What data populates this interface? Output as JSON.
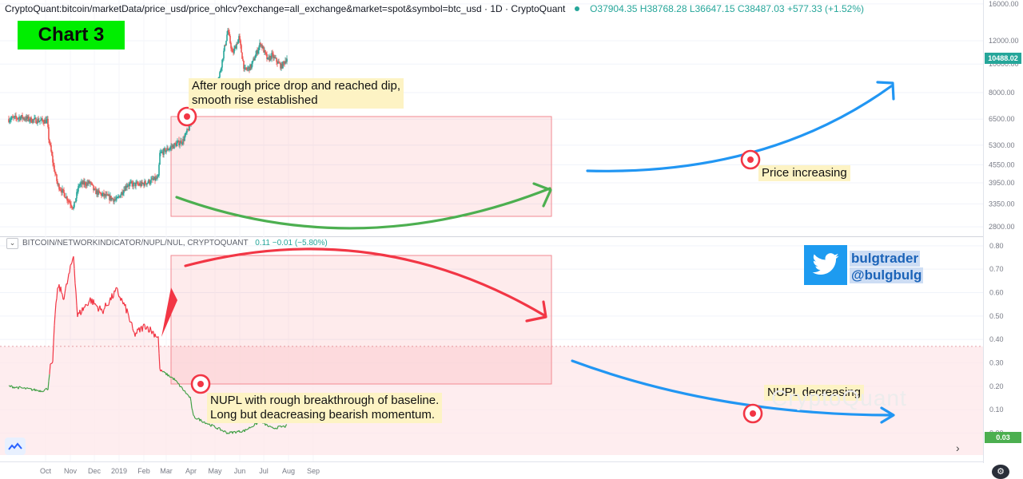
{
  "header": {
    "title": "CryptoQuant:bitcoin/marketData/price_usd/price_ohlcv?exchange=all_exchange&market=spot&symbol=btc_usd · 1D · CryptoQuant",
    "ohlc": "O37904.35  H38768.28  L36647.15  C38487.03  +577.33 (+1.52%)"
  },
  "badge": "Chart 3",
  "indicator": {
    "title": "BITCOIN/NETWORKINDICATOR/NUPL/NUL, CRYPTOQUANT",
    "value": "0.11  −0.01  (−5.80%)",
    "toggle_glyph": "⌄"
  },
  "annotations": {
    "rise": [
      "After rough price drop and reached dip,",
      "smooth rise established"
    ],
    "price_increasing": "Price increasing",
    "nupl_breakthrough": [
      "NUPL with rough breakthrough of baseline.",
      "Long but deacreasing bearish momentum."
    ],
    "nupl_decreasing": "NUPL decreasing"
  },
  "twitter": {
    "handle1": "bulgtrader",
    "handle2": "@bulgbulg"
  },
  "watermark": "CryptoQuant",
  "last_price": "10488.02",
  "last_nupl": "0.03",
  "colors": {
    "up": "#26a69a",
    "down": "#ef5350",
    "nupl_hi": "#f23645",
    "nupl_lo": "#43a047",
    "arrow_blue": "#2196f3",
    "arrow_green": "#4caf50",
    "arrow_red": "#f23645"
  },
  "chart_data": [
    {
      "type": "candlestick",
      "series_label": "BTC price (USD), 1D",
      "y_axis_ticks": [
        "16000.00",
        "12000.00",
        "10000.00",
        "8000.00",
        "6500.00",
        "5300.00",
        "4550.00",
        "3950.00",
        "3350.00",
        "2800.00"
      ],
      "ylim": [
        2600,
        16500
      ],
      "x_axis_ticks": [
        "Oct",
        "Nov",
        "Dec",
        "2019",
        "Feb",
        "Mar",
        "Apr",
        "May",
        "Jun",
        "Jul",
        "Aug",
        "Sep"
      ],
      "close_anchors": [
        [
          "2018-09-25",
          6500
        ],
        [
          "2018-10-10",
          6600
        ],
        [
          "2018-10-25",
          6450
        ],
        [
          "2018-11-12",
          6400
        ],
        [
          "2018-11-14",
          5600
        ],
        [
          "2018-11-20",
          4500
        ],
        [
          "2018-11-25",
          3900
        ],
        [
          "2018-12-07",
          3500
        ],
        [
          "2018-12-15",
          3250
        ],
        [
          "2018-12-22",
          3900
        ],
        [
          "2019-01-05",
          3950
        ],
        [
          "2019-01-10",
          3700
        ],
        [
          "2019-01-25",
          3550
        ],
        [
          "2019-02-07",
          3450
        ],
        [
          "2019-02-20",
          3900
        ],
        [
          "2019-03-10",
          3900
        ],
        [
          "2019-03-31",
          4100
        ],
        [
          "2019-04-02",
          4950
        ],
        [
          "2019-04-20",
          5300
        ],
        [
          "2019-05-01",
          5500
        ],
        [
          "2019-05-10",
          6200
        ],
        [
          "2019-05-14",
          8000
        ],
        [
          "2019-05-30",
          8600
        ],
        [
          "2019-06-05",
          7800
        ],
        [
          "2019-06-15",
          9000
        ],
        [
          "2019-06-26",
          13000
        ],
        [
          "2019-07-02",
          10800
        ],
        [
          "2019-07-10",
          12300
        ],
        [
          "2019-07-17",
          9500
        ],
        [
          "2019-07-25",
          9800
        ],
        [
          "2019-08-06",
          11800
        ],
        [
          "2019-08-15",
          10300
        ],
        [
          "2019-08-20",
          10700
        ],
        [
          "2019-09-01",
          9800
        ],
        [
          "2019-09-08",
          10488.02
        ]
      ]
    },
    {
      "type": "line",
      "series_label": "NUPL",
      "y_axis_ticks": [
        "0.80",
        "0.70",
        "0.60",
        "0.50",
        "0.40",
        "0.30",
        "0.20",
        "0.10",
        "0.00"
      ],
      "ylim": [
        -0.06,
        0.82
      ],
      "baseline": 0.37,
      "anchors": [
        [
          "2018-09-25",
          0.2
        ],
        [
          "2018-10-15",
          0.19
        ],
        [
          "2018-11-05",
          0.18
        ],
        [
          "2018-11-13",
          0.19
        ],
        [
          "2018-11-16",
          0.29
        ],
        [
          "2018-11-19",
          0.3
        ],
        [
          "2018-11-22",
          0.52
        ],
        [
          "2018-11-26",
          0.63
        ],
        [
          "2018-12-03",
          0.58
        ],
        [
          "2018-12-09",
          0.67
        ],
        [
          "2018-12-15",
          0.76
        ],
        [
          "2018-12-20",
          0.5
        ],
        [
          "2019-01-05",
          0.57
        ],
        [
          "2019-01-20",
          0.52
        ],
        [
          "2019-02-07",
          0.61
        ],
        [
          "2019-02-20",
          0.52
        ],
        [
          "2019-03-01",
          0.42
        ],
        [
          "2019-03-15",
          0.46
        ],
        [
          "2019-03-31",
          0.41
        ],
        [
          "2019-04-02",
          0.27
        ],
        [
          "2019-04-20",
          0.23
        ],
        [
          "2019-05-10",
          0.15
        ],
        [
          "2019-05-14",
          0.07
        ],
        [
          "2019-06-01",
          0.04
        ],
        [
          "2019-06-26",
          0.0
        ],
        [
          "2019-07-17",
          0.01
        ],
        [
          "2019-08-06",
          0.05
        ],
        [
          "2019-08-20",
          0.02
        ],
        [
          "2019-09-08",
          0.03
        ]
      ]
    }
  ]
}
